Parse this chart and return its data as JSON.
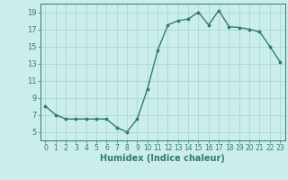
{
  "x": [
    0,
    1,
    2,
    3,
    4,
    5,
    6,
    7,
    8,
    9,
    10,
    11,
    12,
    13,
    14,
    15,
    16,
    17,
    18,
    19,
    20,
    21,
    22,
    23
  ],
  "y": [
    8.0,
    7.0,
    6.5,
    6.5,
    6.5,
    6.5,
    6.5,
    5.5,
    5.0,
    6.5,
    10.0,
    14.5,
    17.5,
    18.0,
    18.2,
    19.0,
    17.5,
    19.2,
    17.3,
    17.2,
    17.0,
    16.7,
    15.0,
    13.2
  ],
  "xlabel": "Humidex (Indice chaleur)",
  "xlim": [
    -0.5,
    23.5
  ],
  "ylim": [
    4,
    20
  ],
  "yticks": [
    5,
    7,
    9,
    11,
    13,
    15,
    17,
    19
  ],
  "xticks": [
    0,
    1,
    2,
    3,
    4,
    5,
    6,
    7,
    8,
    9,
    10,
    11,
    12,
    13,
    14,
    15,
    16,
    17,
    18,
    19,
    20,
    21,
    22,
    23
  ],
  "line_color": "#2e7d6e",
  "marker_color": "#2e7d6e",
  "bg_color": "#cceeea",
  "grid_color": "#aad8d2"
}
